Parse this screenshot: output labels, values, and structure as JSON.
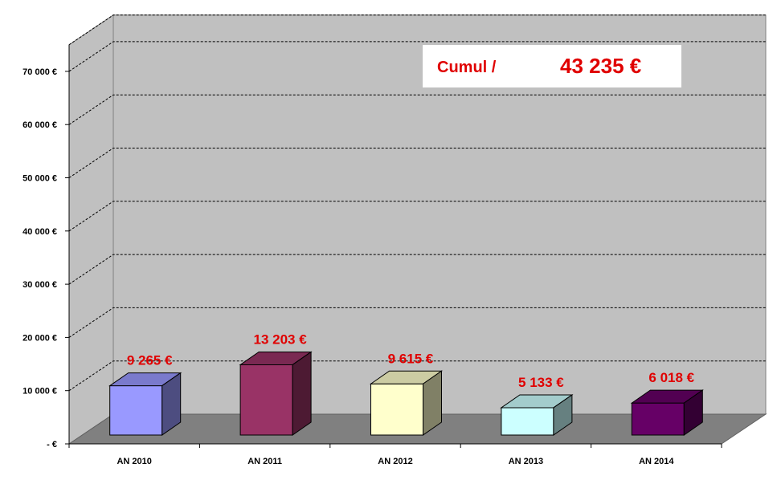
{
  "chart_data": {
    "type": "bar",
    "categories": [
      "AN 2010",
      "AN 2011",
      "AN 2012",
      "AN 2013",
      "AN 2014"
    ],
    "values": [
      9265,
      13203,
      9615,
      5133,
      6018
    ],
    "value_labels": [
      "9 265 €",
      "13 203 €",
      "9 615 €",
      "5 133 €",
      "6 018 €"
    ],
    "bar_colors": [
      "#9999ff",
      "#993366",
      "#ffffcc",
      "#ccffff",
      "#660066"
    ],
    "ylim": [
      0,
      75000
    ],
    "y_ticks": [
      0,
      10000,
      20000,
      30000,
      40000,
      50000,
      60000,
      70000
    ],
    "y_tick_labels": [
      "-   €",
      "10 000 €",
      "20 000 €",
      "30 000 €",
      "40 000 €",
      "50 000 €",
      "60 000 €",
      "70 000 €"
    ],
    "grid": true,
    "style": "3d",
    "annotation": {
      "label": "Cumul /",
      "value": "43 235 €"
    },
    "colors": {
      "wall": "#c0c0c0",
      "floor": "#808080",
      "label": "#e00000"
    }
  }
}
